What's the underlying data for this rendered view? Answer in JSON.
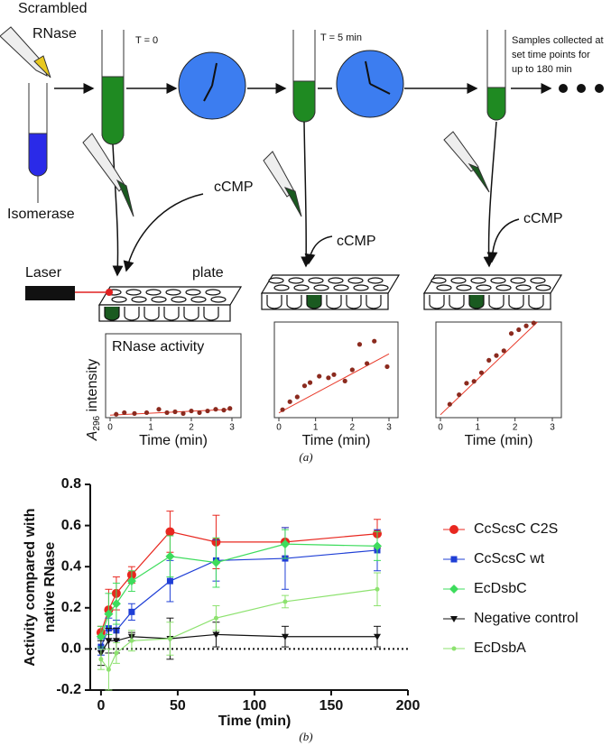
{
  "diagram": {
    "scrambled": [
      "Scrambled",
      "RNase"
    ],
    "isomerase": "Isomerase",
    "t0": "T = 0",
    "t5": "T = 5 min",
    "samples": [
      "Samples collected at",
      "set time points for",
      "up to 180 min"
    ],
    "ccmp": [
      "cCMP",
      "cCMP",
      "cCMP"
    ],
    "plate": "plate",
    "laser": "Laser",
    "panel_a": "(a)",
    "panel_b": "(b)"
  },
  "chart_data": [
    {
      "type": "scatter",
      "title": "RNase activity",
      "ylabel_symbol": "A",
      "ylabel_subscript": "296",
      "ylabel": "intensity",
      "xlabel": "Time (min)",
      "xlim": [
        0,
        3
      ],
      "xticks": [
        0,
        1,
        2,
        3
      ],
      "ylim": [
        0,
        10
      ],
      "color": "#8b2a1e",
      "fit_color": "#e83a2a",
      "x": [
        0.15,
        0.35,
        0.6,
        0.9,
        1.2,
        1.4,
        1.6,
        1.8,
        2.0,
        2.2,
        2.4,
        2.6,
        2.8,
        2.95
      ],
      "values": [
        0.4,
        0.6,
        0.5,
        0.6,
        1.0,
        0.6,
        0.7,
        0.5,
        0.8,
        0.6,
        0.8,
        1.0,
        0.9,
        1.1
      ],
      "fit": {
        "x": [
          0,
          3
        ],
        "y": [
          0.3,
          1.0
        ]
      }
    },
    {
      "type": "scatter",
      "xlabel": "Time (min)",
      "xlim": [
        0,
        3
      ],
      "xticks": [
        0,
        1,
        2,
        3
      ],
      "ylim": [
        0,
        6
      ],
      "color": "#8b2a1e",
      "fit_color": "#e83a2a",
      "x": [
        0.1,
        0.3,
        0.5,
        0.7,
        0.85,
        1.1,
        1.35,
        1.5,
        1.8,
        2.0,
        2.2,
        2.4,
        2.6,
        2.95
      ],
      "values": [
        0.5,
        1.0,
        1.3,
        2.0,
        2.2,
        2.6,
        2.5,
        2.7,
        2.3,
        3.0,
        4.6,
        3.4,
        4.8,
        3.2
      ],
      "fit": {
        "x": [
          0,
          3
        ],
        "y": [
          0.3,
          4.0
        ]
      }
    },
    {
      "type": "scatter",
      "xlabel": "Time (min)",
      "xlim": [
        0,
        3
      ],
      "xticks": [
        0,
        1,
        2,
        3
      ],
      "ylim": [
        0,
        10
      ],
      "color": "#8b2a1e",
      "fit_color": "#e83a2a",
      "x": [
        0.25,
        0.5,
        0.7,
        0.9,
        1.1,
        1.3,
        1.5,
        1.7,
        1.9,
        2.1,
        2.3,
        2.5
      ],
      "values": [
        1.4,
        2.4,
        3.6,
        3.8,
        4.7,
        6.0,
        6.5,
        7.0,
        8.8,
        9.2,
        9.6,
        9.9
      ],
      "fit": {
        "x": [
          0,
          2.6
        ],
        "y": [
          0.3,
          10
        ]
      }
    },
    {
      "type": "line",
      "ylabel": [
        "Activity compared with",
        "native RNase"
      ],
      "xlabel": "Time (min)",
      "xlim": [
        -7,
        200
      ],
      "xticks": [
        0,
        50,
        100,
        150,
        200
      ],
      "ylim": [
        -0.2,
        0.8
      ],
      "yticks": [
        -0.2,
        {
          "value": 0,
          "label": "0.0"
        },
        0.2,
        0.4,
        0.6,
        0.8
      ],
      "reference_line": 0,
      "legend": "right",
      "x": [
        0,
        5,
        10,
        20,
        45,
        75,
        120,
        180
      ],
      "series": [
        {
          "name": "CcScsC C2S",
          "color": "#e8271f",
          "marker": "circle",
          "values": [
            0.08,
            0.19,
            0.27,
            0.36,
            0.57,
            0.52,
            0.52,
            0.56
          ],
          "errors": [
            0.03,
            0.1,
            0.08,
            0.04,
            0.1,
            0.13,
            0.07,
            0.07
          ]
        },
        {
          "name": "CcScsC wt",
          "color": "#1f3fd6",
          "marker": "square",
          "values": [
            0.01,
            0.1,
            0.09,
            0.18,
            0.33,
            0.43,
            0.44,
            0.48
          ],
          "errors": [
            0.04,
            0.05,
            0.05,
            0.04,
            0.1,
            0.1,
            0.15,
            0.1
          ]
        },
        {
          "name": "EcDsbC",
          "color": "#3ddc5c",
          "marker": "diamond",
          "values": [
            0.06,
            0.17,
            0.22,
            0.33,
            0.45,
            0.42,
            0.51,
            0.5
          ],
          "errors": [
            0.05,
            0.1,
            0.1,
            0.05,
            0.1,
            0.12,
            0.07,
            0.07
          ]
        },
        {
          "name": "Negative control",
          "color": "#111111",
          "marker": "triangle-down",
          "values": [
            -0.02,
            0.04,
            0.04,
            0.06,
            0.05,
            0.07,
            0.06,
            0.06
          ],
          "errors": [
            0.06,
            0.06,
            0.06,
            0.02,
            0.1,
            0.06,
            0.05,
            0.05
          ]
        },
        {
          "name": "EcDsbA",
          "color": "#8de26f",
          "marker": "dot",
          "values": [
            -0.05,
            -0.1,
            -0.02,
            0.04,
            0.05,
            0.15,
            0.23,
            0.29
          ],
          "errors": [
            0.05,
            0.1,
            0.05,
            0.05,
            0.08,
            0.06,
            0.03,
            0.08
          ]
        }
      ]
    }
  ]
}
